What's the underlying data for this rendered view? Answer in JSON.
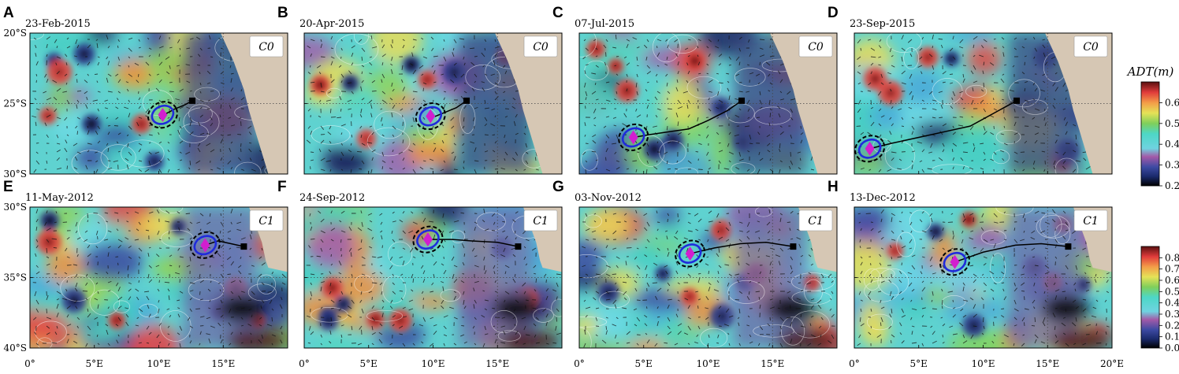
{
  "chart_data": {
    "type": "heatmap",
    "lon_ticks": [
      "0°",
      "5°E",
      "10°E",
      "15°E",
      "20°E"
    ],
    "lon_last_tick": "20°E",
    "xlim": [
      0,
      20
    ],
    "rows": [
      {
        "ylim": [
          -30,
          -20
        ],
        "lat_ticks": [
          "20°S",
          "25°S",
          "30°S"
        ],
        "cluster_label": "C0",
        "land_color": "#d6c7b4",
        "panels": [
          {
            "letter": "A",
            "date": "23-Feb-2015",
            "eddy_lon": 10.3,
            "eddy_lat": -25.8,
            "track": [
              [
                12.6,
                -24.8
              ],
              [
                12.0,
                -25.1
              ],
              [
                11.2,
                -25.4
              ],
              [
                10.6,
                -25.7
              ],
              [
                10.3,
                -25.8
              ]
            ]
          },
          {
            "letter": "B",
            "date": "20-Apr-2015",
            "eddy_lon": 9.8,
            "eddy_lat": -25.9,
            "track": [
              [
                12.6,
                -24.8
              ],
              [
                11.8,
                -25.3
              ],
              [
                11.0,
                -25.6
              ],
              [
                10.2,
                -25.9
              ],
              [
                9.8,
                -25.9
              ]
            ]
          },
          {
            "letter": "C",
            "date": "07-Jul-2015",
            "eddy_lon": 4.2,
            "eddy_lat": -27.4,
            "track": [
              [
                12.6,
                -24.8
              ],
              [
                11.5,
                -25.5
              ],
              [
                10.0,
                -26.2
              ],
              [
                8.5,
                -26.8
              ],
              [
                7.0,
                -27.0
              ],
              [
                5.5,
                -27.2
              ],
              [
                4.2,
                -27.4
              ]
            ]
          },
          {
            "letter": "D",
            "date": "23-Sep-2015",
            "eddy_lon": 1.2,
            "eddy_lat": -28.2,
            "track": [
              [
                12.6,
                -24.8
              ],
              [
                11.0,
                -25.6
              ],
              [
                9.0,
                -26.6
              ],
              [
                7.0,
                -27.0
              ],
              [
                5.0,
                -27.4
              ],
              [
                3.0,
                -27.8
              ],
              [
                1.2,
                -28.2
              ]
            ]
          }
        ]
      },
      {
        "ylim": [
          -40,
          -30
        ],
        "lat_ticks": [
          "30°S",
          "35°S",
          "40°S"
        ],
        "cluster_label": "C1",
        "land_color": "#d6c7b4",
        "panels": [
          {
            "letter": "E",
            "date": "11-May-2012",
            "eddy_lon": 13.6,
            "eddy_lat": -32.7,
            "track": [
              [
                16.6,
                -32.8
              ],
              [
                15.6,
                -32.6
              ],
              [
                14.6,
                -32.4
              ],
              [
                13.6,
                -32.7
              ]
            ]
          },
          {
            "letter": "F",
            "date": "24-Sep-2012",
            "eddy_lon": 9.6,
            "eddy_lat": -32.3,
            "track": [
              [
                16.6,
                -32.8
              ],
              [
                15.0,
                -32.5
              ],
              [
                13.0,
                -32.4
              ],
              [
                11.5,
                -32.3
              ],
              [
                9.6,
                -32.3
              ]
            ]
          },
          {
            "letter": "G",
            "date": "03-Nov-2012",
            "eddy_lon": 8.6,
            "eddy_lat": -33.3,
            "track": [
              [
                16.6,
                -32.8
              ],
              [
                14.5,
                -32.5
              ],
              [
                12.5,
                -32.6
              ],
              [
                10.5,
                -32.9
              ],
              [
                8.6,
                -33.3
              ]
            ]
          },
          {
            "letter": "H",
            "date": "13-Dec-2012",
            "eddy_lon": 7.8,
            "eddy_lat": -33.9,
            "track": [
              [
                16.6,
                -32.8
              ],
              [
                14.5,
                -32.6
              ],
              [
                12.5,
                -32.7
              ],
              [
                10.0,
                -33.2
              ],
              [
                7.8,
                -33.9
              ]
            ]
          }
        ]
      }
    ],
    "colorbars": [
      {
        "title": "ADT(m)",
        "ticks": [
          "0.6",
          "0.5",
          "0.4",
          "0.3",
          "0.2"
        ],
        "range": [
          0.2,
          0.7
        ]
      },
      {
        "title": "",
        "ticks": [
          "0.8",
          "0.7",
          "0.6",
          "0.5",
          "0.4",
          "0.3",
          "0.2",
          "0.1",
          "0.0"
        ],
        "range": [
          0.0,
          0.9
        ]
      }
    ],
    "colors": {
      "eddy_marker": "#d21ecf",
      "eddy_contour": "#1f2bdc",
      "track": "#000000",
      "land": "#d6c7b4"
    }
  }
}
